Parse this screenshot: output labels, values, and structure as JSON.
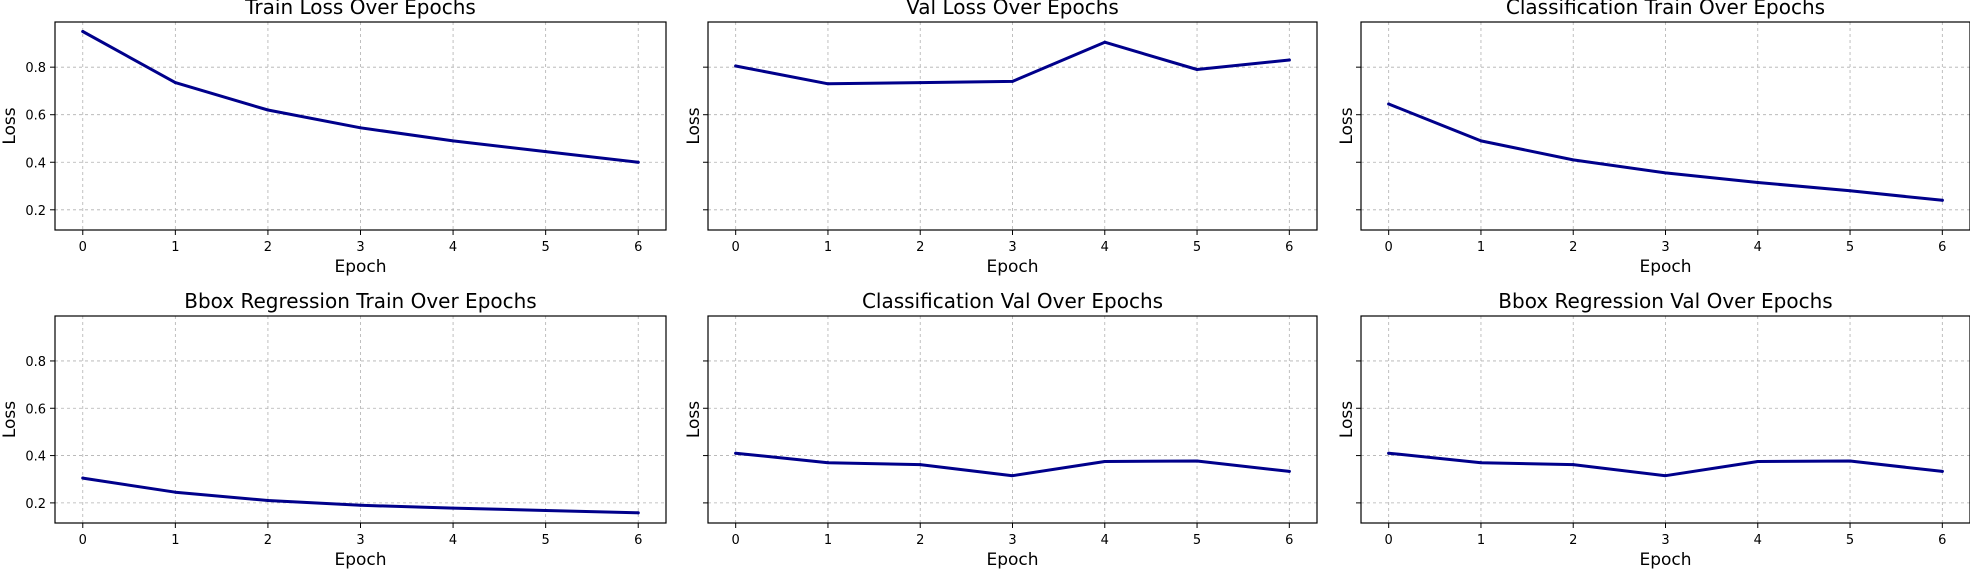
{
  "chart_data": [
    {
      "type": "line",
      "title": "Train Loss Over Epochs",
      "xlabel": "Epoch",
      "ylabel": "Loss",
      "x": [
        0,
        1,
        2,
        3,
        4,
        5,
        6
      ],
      "series": [
        {
          "values": [
            0.95,
            0.735,
            0.62,
            0.545,
            0.49,
            0.445,
            0.4
          ]
        }
      ],
      "xlim": [
        -0.3,
        6.3
      ],
      "ylim": [
        0.115,
        0.99
      ],
      "xticks": [
        "0",
        "1",
        "2",
        "3",
        "4",
        "5",
        "6"
      ],
      "yticks": [
        "0.2",
        "0.4",
        "0.6",
        "0.8"
      ],
      "grid": true
    },
    {
      "type": "line",
      "title": "Val Loss Over Epochs",
      "xlabel": "Epoch",
      "ylabel": "Loss",
      "x": [
        0,
        1,
        2,
        3,
        4,
        5,
        6
      ],
      "series": [
        {
          "values": [
            0.805,
            0.73,
            0.735,
            0.74,
            0.905,
            0.79,
            0.83
          ]
        }
      ],
      "xlim": [
        -0.3,
        6.3
      ],
      "ylim": [
        0.115,
        0.99
      ],
      "xticks": [
        "0",
        "1",
        "2",
        "3",
        "4",
        "5",
        "6"
      ],
      "yticks": [],
      "grid": true
    },
    {
      "type": "line",
      "title": "Classification Train Over Epochs",
      "xlabel": "Epoch",
      "ylabel": "Loss",
      "x": [
        0,
        1,
        2,
        3,
        4,
        5,
        6
      ],
      "series": [
        {
          "values": [
            0.645,
            0.49,
            0.41,
            0.355,
            0.315,
            0.28,
            0.24
          ]
        }
      ],
      "xlim": [
        -0.3,
        6.3
      ],
      "ylim": [
        0.115,
        0.99
      ],
      "xticks": [
        "0",
        "1",
        "2",
        "3",
        "4",
        "5",
        "6"
      ],
      "yticks": [],
      "grid": true
    },
    {
      "type": "line",
      "title": "Bbox Regression Train Over Epochs",
      "xlabel": "Epoch",
      "ylabel": "Loss",
      "x": [
        0,
        1,
        2,
        3,
        4,
        5,
        6
      ],
      "series": [
        {
          "values": [
            0.305,
            0.245,
            0.21,
            0.19,
            0.178,
            0.168,
            0.158
          ]
        }
      ],
      "xlim": [
        -0.3,
        6.3
      ],
      "ylim": [
        0.115,
        0.99
      ],
      "xticks": [
        "0",
        "1",
        "2",
        "3",
        "4",
        "5",
        "6"
      ],
      "yticks": [
        "0.2",
        "0.4",
        "0.6",
        "0.8"
      ],
      "grid": true
    },
    {
      "type": "line",
      "title": "Classification Val Over Epochs",
      "xlabel": "Epoch",
      "ylabel": "Loss",
      "x": [
        0,
        1,
        2,
        3,
        4,
        5,
        6
      ],
      "series": [
        {
          "values": [
            0.41,
            0.37,
            0.362,
            0.315,
            0.375,
            0.377,
            0.333
          ]
        }
      ],
      "xlim": [
        -0.3,
        6.3
      ],
      "ylim": [
        0.115,
        0.99
      ],
      "xticks": [
        "0",
        "1",
        "2",
        "3",
        "4",
        "5",
        "6"
      ],
      "yticks": [],
      "grid": true
    },
    {
      "type": "line",
      "title": "Bbox Regression Val Over Epochs",
      "xlabel": "Epoch",
      "ylabel": "Loss",
      "x": [
        0,
        1,
        2,
        3,
        4,
        5,
        6
      ],
      "series": [
        {
          "values": [
            0.41,
            0.37,
            0.362,
            0.315,
            0.375,
            0.377,
            0.333
          ]
        }
      ],
      "xlim": [
        -0.3,
        6.3
      ],
      "ylim": [
        0.115,
        0.99
      ],
      "xticks": [
        "0",
        "1",
        "2",
        "3",
        "4",
        "5",
        "6"
      ],
      "yticks": [],
      "grid": true
    }
  ],
  "colors": {
    "line": "#00008b",
    "grid": "#b0b0b0"
  }
}
